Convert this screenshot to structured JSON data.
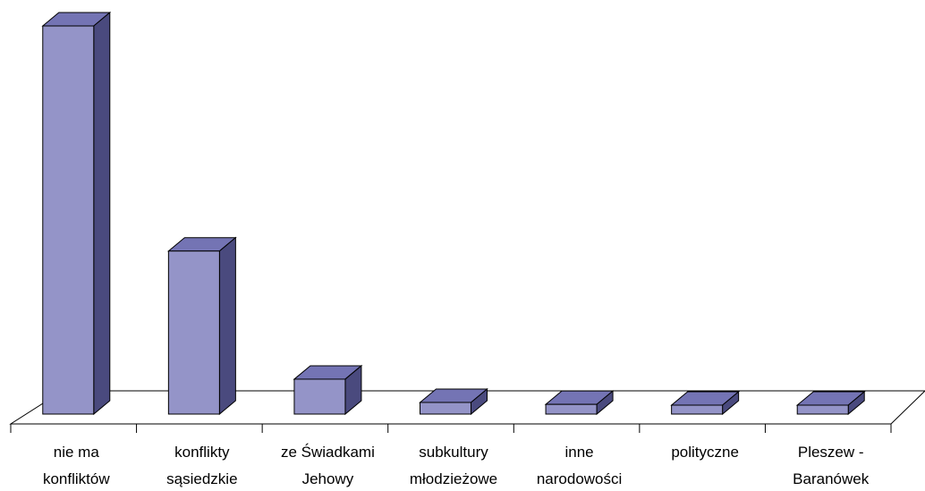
{
  "chart_data": {
    "type": "bar",
    "style": "3d-column",
    "categories": [
      [
        "nie ma",
        "konfliktów"
      ],
      [
        "konflikty",
        "sąsiedzkie"
      ],
      [
        "ze Świadkami",
        "Jehowy"
      ],
      [
        "subkultury",
        "młodzieżowe"
      ],
      [
        "inne",
        "narodowości"
      ],
      [
        "polityczne"
      ],
      [
        "Pleszew -",
        "Baranówek"
      ]
    ],
    "values": [
      100,
      42,
      9,
      3,
      2.5,
      1.5,
      1.5
    ],
    "ylim": [
      0,
      100
    ],
    "grid": false,
    "legend": false,
    "colors": {
      "front": "#9494c8",
      "side": "#4a4a7e",
      "top": "#7474b4",
      "edge": "#000000",
      "floor": "#ffffff"
    }
  }
}
